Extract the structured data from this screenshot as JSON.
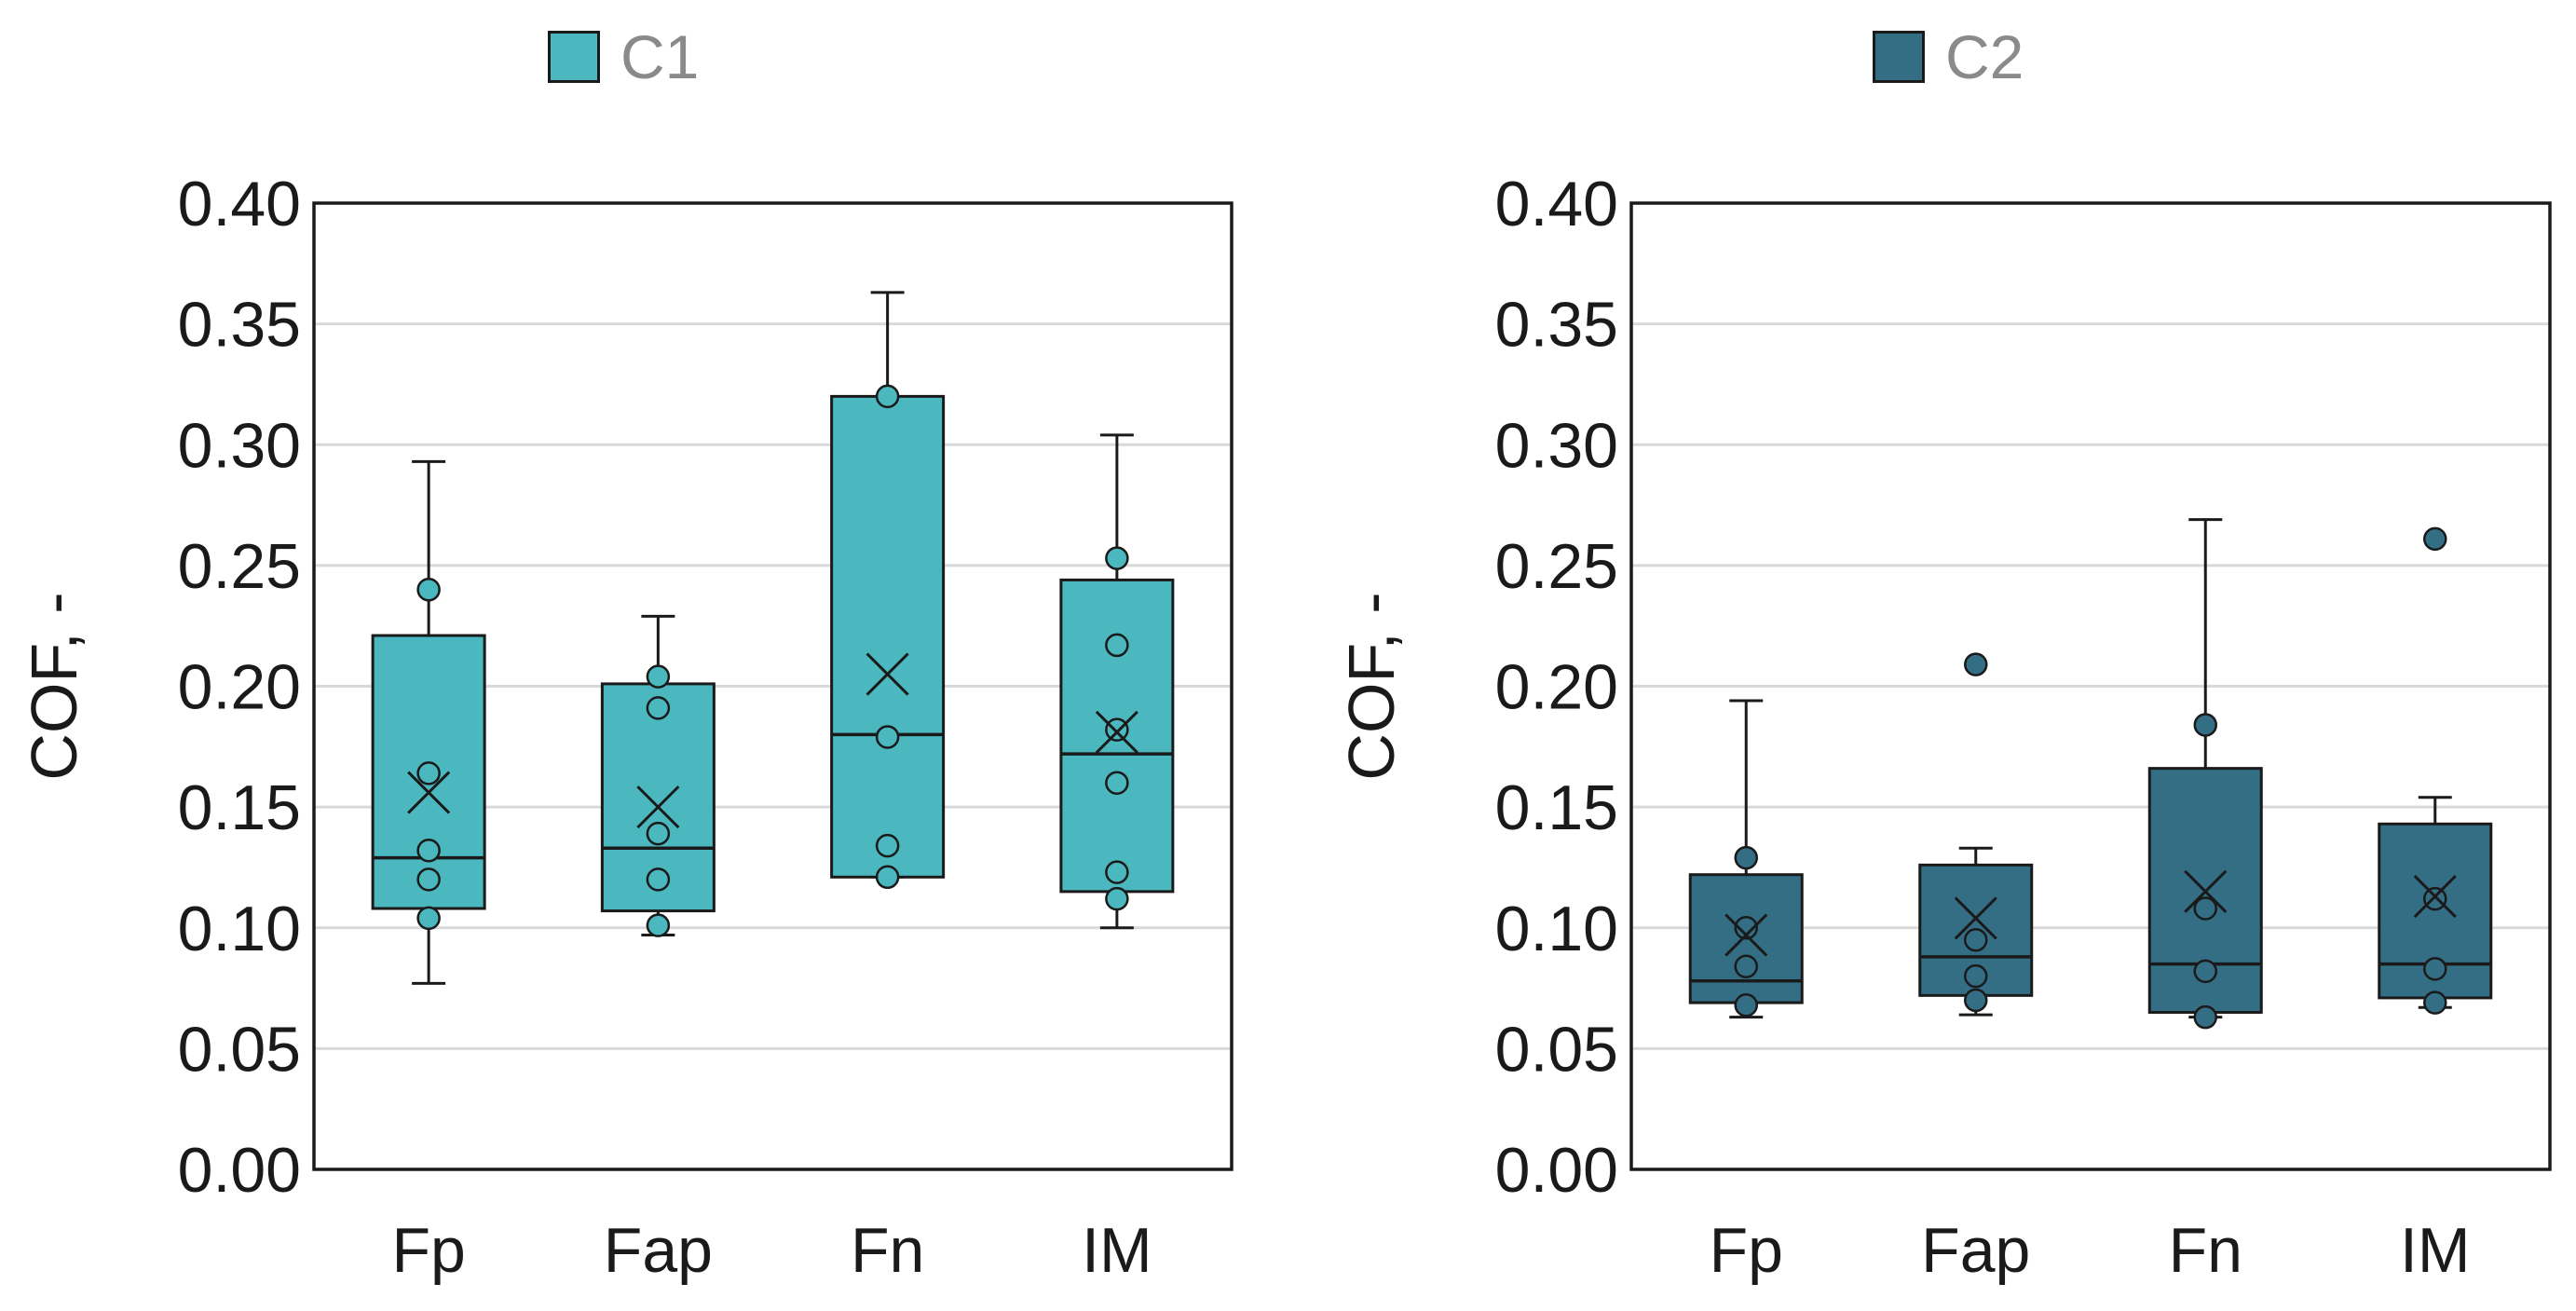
{
  "chart_data": [
    {
      "type": "box",
      "series_name": "C1",
      "color": "#4BB8C0",
      "ylabel": "COF, -",
      "ylim": [
        0,
        0.4
      ],
      "yticks": [
        "0.00",
        "0.05",
        "0.10",
        "0.15",
        "0.20",
        "0.25",
        "0.30",
        "0.35",
        "0.40"
      ],
      "grid": true,
      "legend_position": "top",
      "categories": [
        "Fp",
        "Fap",
        "Fn",
        "IM"
      ],
      "boxes": [
        {
          "whisker_low": 0.077,
          "q1": 0.108,
          "median": 0.129,
          "q3": 0.221,
          "whisker_high": 0.293,
          "mean": 0.156,
          "points": [
            0.104,
            0.12,
            0.132,
            0.164,
            0.24
          ],
          "outliers": []
        },
        {
          "whisker_low": 0.097,
          "q1": 0.107,
          "median": 0.133,
          "q3": 0.201,
          "whisker_high": 0.229,
          "mean": 0.15,
          "points": [
            0.101,
            0.12,
            0.139,
            0.191,
            0.204
          ],
          "outliers": []
        },
        {
          "whisker_low": 0.121,
          "q1": 0.121,
          "median": 0.18,
          "q3": 0.32,
          "whisker_high": 0.363,
          "mean": 0.205,
          "points": [
            0.121,
            0.134,
            0.179,
            0.32
          ],
          "outliers": []
        },
        {
          "whisker_low": 0.1,
          "q1": 0.115,
          "median": 0.172,
          "q3": 0.244,
          "whisker_high": 0.304,
          "mean": 0.181,
          "points": [
            0.112,
            0.123,
            0.16,
            0.182,
            0.217,
            0.253
          ],
          "outliers": []
        }
      ]
    },
    {
      "type": "box",
      "series_name": "C2",
      "color": "#346E85",
      "ylabel": "COF, -",
      "ylim": [
        0,
        0.4
      ],
      "yticks": [
        "0.00",
        "0.05",
        "0.10",
        "0.15",
        "0.20",
        "0.25",
        "0.30",
        "0.35",
        "0.40"
      ],
      "grid": true,
      "legend_position": "top",
      "categories": [
        "Fp",
        "Fap",
        "Fn",
        "IM"
      ],
      "boxes": [
        {
          "whisker_low": 0.063,
          "q1": 0.069,
          "median": 0.078,
          "q3": 0.122,
          "whisker_high": 0.194,
          "mean": 0.097,
          "points": [
            0.068,
            0.084,
            0.1,
            0.129
          ],
          "outliers": []
        },
        {
          "whisker_low": 0.064,
          "q1": 0.072,
          "median": 0.088,
          "q3": 0.126,
          "whisker_high": 0.133,
          "mean": 0.104,
          "points": [
            0.07,
            0.08,
            0.095
          ],
          "outliers": [
            0.209
          ]
        },
        {
          "whisker_low": 0.063,
          "q1": 0.065,
          "median": 0.085,
          "q3": 0.166,
          "whisker_high": 0.269,
          "mean": 0.115,
          "points": [
            0.063,
            0.082,
            0.108,
            0.184
          ],
          "outliers": []
        },
        {
          "whisker_low": 0.067,
          "q1": 0.071,
          "median": 0.085,
          "q3": 0.143,
          "whisker_high": 0.154,
          "mean": 0.113,
          "points": [
            0.069,
            0.083,
            0.112
          ],
          "outliers": [
            0.261
          ]
        }
      ]
    }
  ]
}
